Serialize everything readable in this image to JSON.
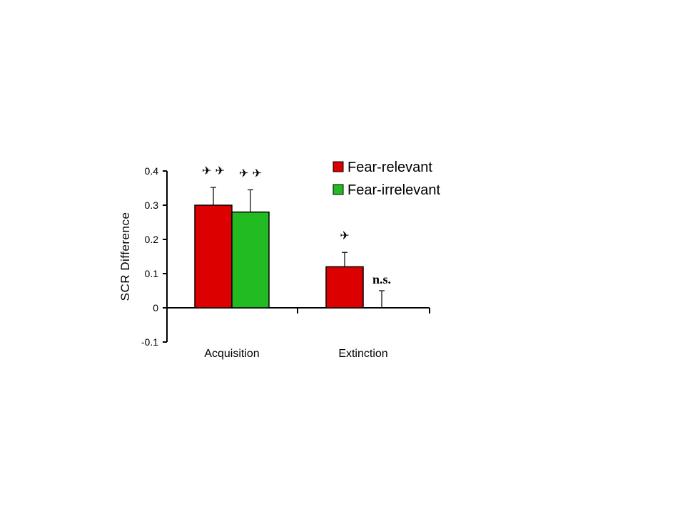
{
  "chart_data": {
    "type": "bar",
    "categories": [
      "Acquisition",
      "Extinction"
    ],
    "series": [
      {
        "name": "Fear-relevant",
        "color": "#dd0000",
        "values": [
          0.3,
          0.12
        ],
        "errors": [
          0.052,
          0.042
        ]
      },
      {
        "name": "Fear-irrelevant",
        "color": "#22bb22",
        "values": [
          0.28,
          0.0
        ],
        "errors": [
          0.065,
          0.05
        ]
      }
    ],
    "ylabel": "SCR Difference",
    "xlabel": "",
    "ylim": [
      -0.1,
      0.4
    ],
    "yticks": [
      -0.1,
      0,
      0.1,
      0.2,
      0.3,
      0.4
    ],
    "ytick_labels": [
      "-0.1",
      "0",
      "0.1",
      "0.2",
      "0.3",
      "0.4"
    ],
    "legend_position": "top-right",
    "grid": false,
    "significance_markers": [
      {
        "category": 0,
        "series": 0,
        "text": "✈ ✈"
      },
      {
        "category": 0,
        "series": 1,
        "text": "✈ ✈"
      },
      {
        "category": 1,
        "series": 0,
        "text": "✈"
      }
    ],
    "annotations": [
      {
        "category": 1,
        "series": 1,
        "text": "n.s."
      }
    ]
  }
}
